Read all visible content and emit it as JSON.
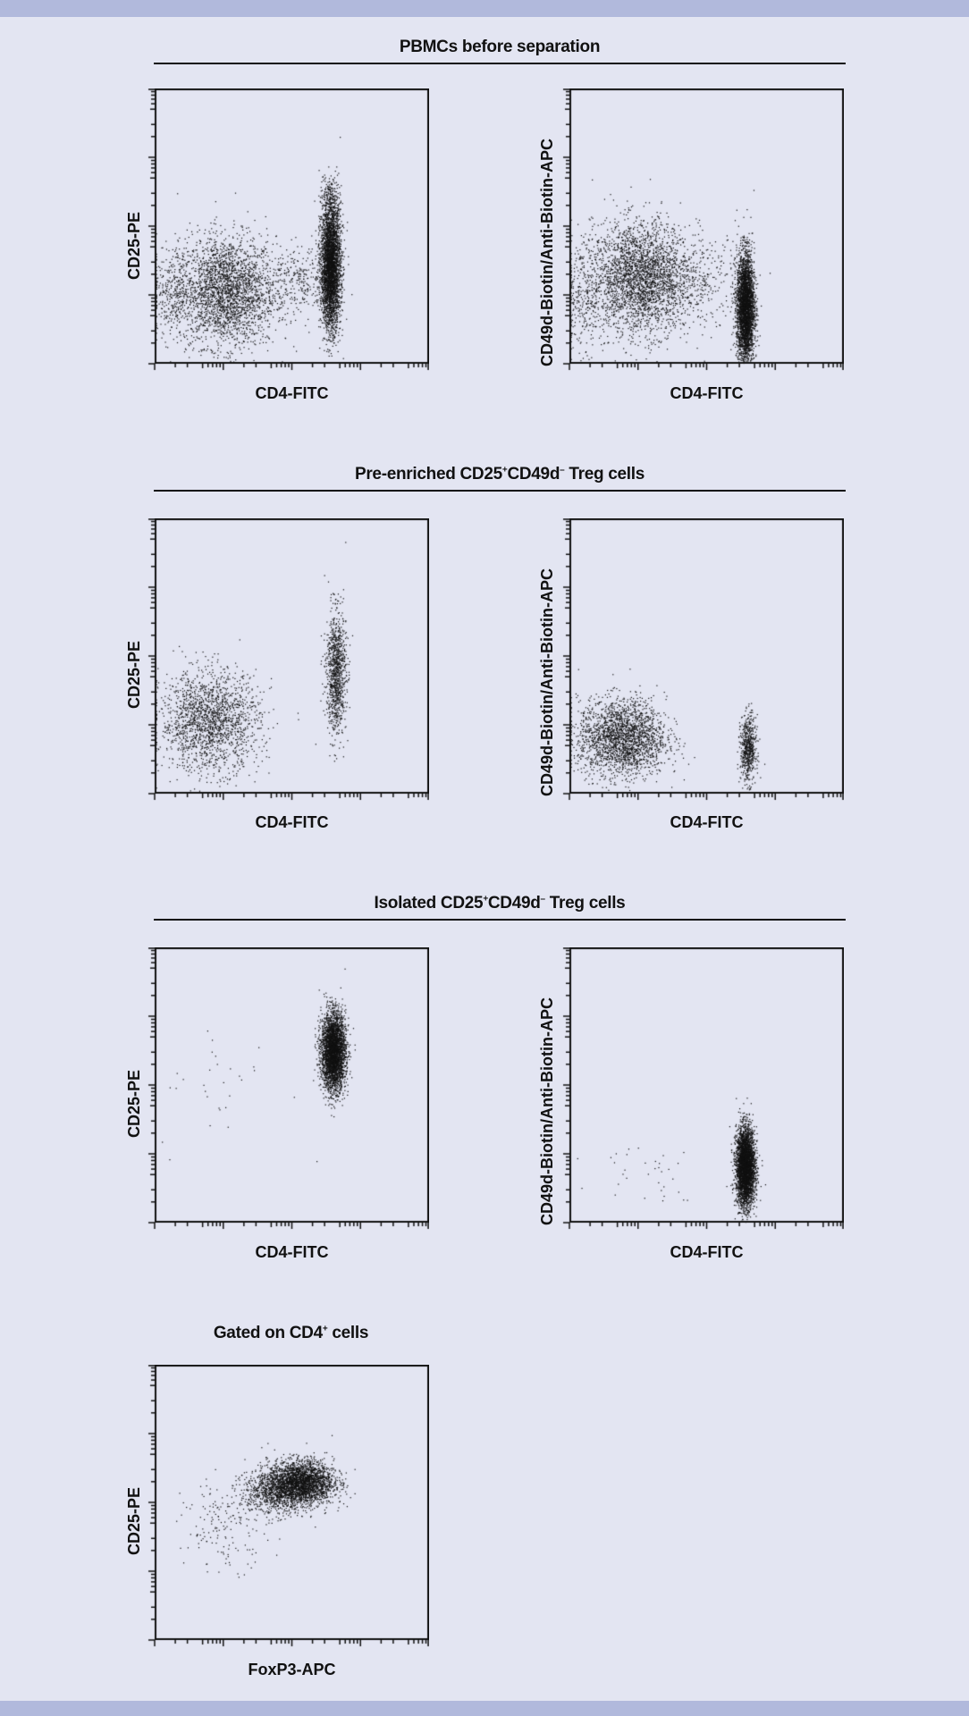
{
  "colors": {
    "background": "#e3e5f2",
    "band": "#b1b9dc",
    "ink": "#111111"
  },
  "sections": [
    {
      "title": "PBMCs before separation"
    },
    {
      "title_parts": [
        "Pre-enriched CD25",
        "+",
        "CD49d",
        "–",
        " Treg cells"
      ]
    },
    {
      "title_parts": [
        "Isolated CD25",
        "+",
        "CD49d",
        "–",
        " Treg cells"
      ]
    },
    {
      "title_parts": [
        "Gated on CD4",
        "+",
        " cells"
      ]
    }
  ],
  "chart_data": [
    {
      "type": "scatter",
      "section": "PBMCs before separation",
      "xlabel": "CD4-FITC",
      "ylabel": "CD25-PE",
      "scale": "log (4 decades, unlabeled ticks)",
      "axis_range": [
        0,
        1
      ],
      "clusters": [
        {
          "cx": 0.26,
          "cy": 0.26,
          "sx": 0.09,
          "sy": 0.1,
          "n": 2600
        },
        {
          "cx": 0.53,
          "cy": 0.3,
          "sx": 0.05,
          "sy": 0.06,
          "n": 250
        },
        {
          "cx": 0.64,
          "cy": 0.35,
          "sx": 0.018,
          "sy": 0.11,
          "n": 3600
        },
        {
          "cx": 0.64,
          "cy": 0.58,
          "sx": 0.02,
          "sy": 0.05,
          "n": 200
        },
        {
          "cx": 0.06,
          "cy": 0.25,
          "sx": 0.04,
          "sy": 0.08,
          "n": 300
        }
      ]
    },
    {
      "type": "scatter",
      "section": "PBMCs before separation",
      "xlabel": "CD4-FITC",
      "ylabel": "CD49d-Biotin/Anti-Biotin-APC",
      "scale": "log",
      "axis_range": [
        0,
        1
      ],
      "clusters": [
        {
          "cx": 0.26,
          "cy": 0.31,
          "sx": 0.09,
          "sy": 0.1,
          "n": 2800
        },
        {
          "cx": 0.48,
          "cy": 0.3,
          "sx": 0.07,
          "sy": 0.08,
          "n": 250
        },
        {
          "cx": 0.64,
          "cy": 0.2,
          "sx": 0.016,
          "sy": 0.1,
          "n": 3400
        },
        {
          "cx": 0.05,
          "cy": 0.25,
          "sx": 0.04,
          "sy": 0.1,
          "n": 300
        }
      ]
    },
    {
      "type": "scatter",
      "section": "Pre-enriched CD25+CD49d- Treg cells",
      "xlabel": "CD4-FITC",
      "ylabel": "CD25-PE",
      "scale": "log",
      "axis_range": [
        0,
        1
      ],
      "clusters": [
        {
          "cx": 0.2,
          "cy": 0.26,
          "sx": 0.09,
          "sy": 0.09,
          "n": 1800
        },
        {
          "cx": 0.66,
          "cy": 0.44,
          "sx": 0.018,
          "sy": 0.11,
          "n": 1000
        }
      ]
    },
    {
      "type": "scatter",
      "section": "Pre-enriched CD25+CD49d- Treg cells",
      "xlabel": "CD4-FITC",
      "ylabel": "CD49d-Biotin/Anti-Biotin-APC",
      "scale": "log",
      "axis_range": [
        0,
        1
      ],
      "clusters": [
        {
          "cx": 0.19,
          "cy": 0.2,
          "sx": 0.08,
          "sy": 0.07,
          "n": 2200
        },
        {
          "cx": 0.65,
          "cy": 0.16,
          "sx": 0.014,
          "sy": 0.06,
          "n": 600
        }
      ]
    },
    {
      "type": "scatter",
      "section": "Isolated CD25+CD49d- Treg cells",
      "xlabel": "CD4-FITC",
      "ylabel": "CD25-PE",
      "scale": "log",
      "axis_range": [
        0,
        1
      ],
      "clusters": [
        {
          "cx": 0.65,
          "cy": 0.62,
          "sx": 0.022,
          "sy": 0.07,
          "n": 3400
        },
        {
          "cx": 0.25,
          "cy": 0.48,
          "sx": 0.12,
          "sy": 0.12,
          "n": 30
        }
      ]
    },
    {
      "type": "scatter",
      "section": "Isolated CD25+CD49d- Treg cells",
      "xlabel": "CD4-FITC",
      "ylabel": "CD49d-Biotin/Anti-Biotin-APC",
      "scale": "log",
      "axis_range": [
        0,
        1
      ],
      "clusters": [
        {
          "cx": 0.64,
          "cy": 0.2,
          "sx": 0.017,
          "sy": 0.07,
          "n": 3600
        },
        {
          "cx": 0.3,
          "cy": 0.2,
          "sx": 0.1,
          "sy": 0.06,
          "n": 35
        }
      ]
    },
    {
      "type": "scatter",
      "section": "Gated on CD4+ cells",
      "xlabel": "FoxP3-APC",
      "ylabel": "CD25-PE",
      "scale": "log",
      "axis_range": [
        0,
        1
      ],
      "clusters": [
        {
          "cx": 0.53,
          "cy": 0.57,
          "sx": 0.06,
          "sy": 0.04,
          "n": 2600
        },
        {
          "cx": 0.43,
          "cy": 0.53,
          "sx": 0.06,
          "sy": 0.04,
          "n": 700
        },
        {
          "cx": 0.26,
          "cy": 0.42,
          "sx": 0.08,
          "sy": 0.08,
          "n": 170
        }
      ]
    }
  ]
}
